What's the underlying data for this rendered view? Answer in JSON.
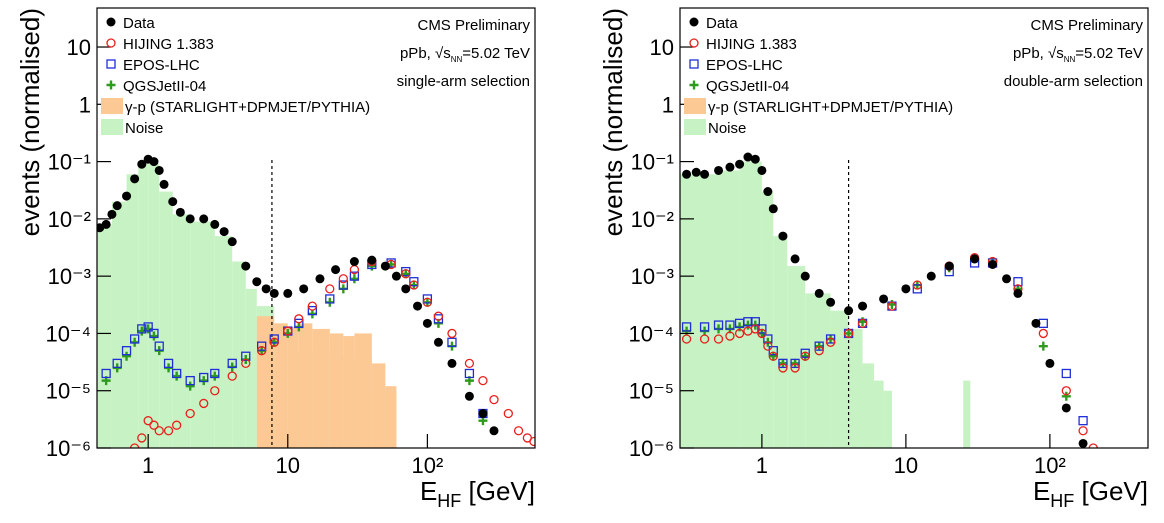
{
  "chart_data": [
    {
      "type": "scatter",
      "xlog": true,
      "ylog": true,
      "xlim": [
        0.43,
        590
      ],
      "ylim": [
        1e-06,
        48
      ],
      "xticks": [
        1,
        10,
        {
          "value": 100,
          "label": "10²"
        }
      ],
      "yticks": [
        {
          "value": 1e-06,
          "label": "10⁻⁶"
        },
        {
          "value": 1e-05,
          "label": "10⁻⁵"
        },
        {
          "value": 0.0001,
          "label": "10⁻⁴"
        },
        {
          "value": 0.001,
          "label": "10⁻³"
        },
        {
          "value": 0.01,
          "label": "10⁻²"
        },
        {
          "value": 0.1,
          "label": "10⁻¹"
        },
        1,
        10
      ],
      "y_label": "events (normalised)",
      "x_label": {
        "main": "E",
        "sub": "HF",
        "rest": " [GeV]"
      },
      "legend": "upper left",
      "annotations": {
        "experiment": "CMS Preliminary",
        "energy": {
          "prefix": "pPb, √s",
          "sub": "NN",
          "suffix": "=5.02 TeV"
        },
        "selection": "single-arm selection"
      },
      "threshold_x": 7.7,
      "series": [
        {
          "name": "Data",
          "color": "#000000",
          "marker": "filled-circle",
          "x": [
            0.45,
            0.5,
            0.55,
            0.6,
            0.7,
            0.8,
            0.9,
            1.0,
            1.1,
            1.2,
            1.3,
            1.5,
            1.7,
            2,
            2.5,
            3,
            3.5,
            4,
            5,
            6,
            7,
            8,
            10,
            13,
            17,
            22,
            30,
            40,
            50,
            60,
            70,
            85,
            100,
            120,
            150,
            200,
            250,
            300
          ],
          "values": [
            0.007,
            0.008,
            0.012,
            0.017,
            0.025,
            0.05,
            0.09,
            0.11,
            0.1,
            0.07,
            0.04,
            0.02,
            0.013,
            0.01,
            0.01,
            0.008,
            0.006,
            0.004,
            0.0015,
            0.0008,
            0.0006,
            0.0005,
            0.0005,
            0.0006,
            0.0009,
            0.0013,
            0.0018,
            0.0019,
            0.0015,
            0.001,
            0.0006,
            0.0003,
            0.00015,
            7e-05,
            3e-05,
            8e-06,
            4e-06,
            2e-06
          ]
        },
        {
          "name": "HIJING 1.383",
          "color": "#e8201c",
          "marker": "open-circle",
          "x": [
            0.8,
            0.9,
            1.0,
            1.1,
            1.2,
            1.4,
            1.6,
            2,
            2.5,
            3,
            4,
            5,
            6.5,
            8,
            10,
            12,
            15,
            20,
            25,
            30,
            40,
            55,
            70,
            80,
            100,
            120,
            150,
            200,
            250,
            300,
            380,
            450,
            520,
            580
          ],
          "values": [
            1e-06,
            1.5e-06,
            3e-06,
            2.5e-06,
            2e-06,
            2e-06,
            2.5e-06,
            4e-06,
            6e-06,
            1e-05,
            1.8e-05,
            3e-05,
            5e-05,
            7e-05,
            0.00011,
            0.00018,
            0.0003,
            0.0006,
            0.0009,
            0.0013,
            0.0018,
            0.0016,
            0.0011,
            0.0007,
            0.00035,
            0.0002,
            0.0001,
            3e-05,
            1.5e-05,
            7e-06,
            4e-06,
            2e-06,
            1.5e-06,
            1.3e-06
          ]
        },
        {
          "name": "EPOS-LHC",
          "color": "#1f2fd6",
          "marker": "open-square",
          "x": [
            0.5,
            0.6,
            0.7,
            0.8,
            0.9,
            1.0,
            1.1,
            1.2,
            1.4,
            1.6,
            2,
            2.5,
            3,
            4,
            5,
            6.5,
            8,
            10,
            12,
            15,
            20,
            25,
            30,
            40,
            55,
            70,
            80,
            100,
            120,
            150,
            200,
            250
          ],
          "values": [
            2e-05,
            3e-05,
            5e-05,
            8e-05,
            0.00012,
            0.00013,
            0.0001,
            6e-05,
            3e-05,
            2e-05,
            1.5e-05,
            1.7e-05,
            2e-05,
            3e-05,
            4e-05,
            6e-05,
            8e-05,
            0.00011,
            0.00015,
            0.00025,
            0.0004,
            0.0007,
            0.001,
            0.0016,
            0.0017,
            0.0012,
            0.0008,
            0.0004,
            0.00018,
            7e-05,
            2e-05,
            4e-06
          ]
        },
        {
          "name": "QGSJetII-04",
          "color": "#2e9a1e",
          "marker": "cross",
          "x": [
            0.5,
            0.6,
            0.7,
            0.8,
            0.9,
            1.0,
            1.1,
            1.2,
            1.4,
            1.6,
            2,
            2.5,
            3,
            4,
            5,
            6.5,
            8,
            10,
            12,
            15,
            20,
            25,
            30,
            40,
            55,
            70,
            80,
            100,
            120,
            150,
            200,
            250
          ],
          "values": [
            1.5e-05,
            2.5e-05,
            4e-05,
            7e-05,
            0.00011,
            0.00012,
            9e-05,
            5e-05,
            2.5e-05,
            1.8e-05,
            1.2e-05,
            1.5e-05,
            1.8e-05,
            2.6e-05,
            3.5e-05,
            5e-05,
            7e-05,
            0.0001,
            0.00013,
            0.00022,
            0.00035,
            0.0006,
            0.0009,
            0.0015,
            0.0016,
            0.0011,
            0.0007,
            0.00035,
            0.00015,
            6e-05,
            1.5e-05,
            3e-06
          ]
        }
      ],
      "histograms": [
        {
          "name": "γ-p (STARLIGHT+DPMJET/PYTHIA)",
          "color": "#fcc894",
          "bins": [
            6,
            8,
            10,
            12,
            15,
            20,
            25,
            30,
            40,
            50,
            60
          ],
          "counts": [
            0.0002,
            0.00015,
            0.00013,
            0.00015,
            0.00012,
            0.0001,
            9e-05,
            0.0001,
            3e-05,
            1.2e-05
          ]
        },
        {
          "name": "Noise",
          "color": "#c7f2c3",
          "bins": [
            0.43,
            0.55,
            0.7,
            0.85,
            1.0,
            1.2,
            1.5,
            2,
            3,
            4,
            5,
            6,
            8,
            10,
            20,
            40,
            60
          ],
          "counts": [
            0.008,
            0.02,
            0.06,
            0.1,
            0.09,
            0.03,
            0.012,
            0.009,
            0.005,
            0.0018,
            0.0006,
            0.0003,
            0.0001,
            5e-05,
            4e-05,
            1e-05
          ]
        }
      ]
    },
    {
      "type": "scatter",
      "xlog": true,
      "ylog": true,
      "xlim": [
        0.27,
        480
      ],
      "ylim": [
        1e-06,
        48
      ],
      "xticks": [
        1,
        10,
        {
          "value": 100,
          "label": "10²"
        }
      ],
      "yticks": [
        {
          "value": 1e-06,
          "label": "10⁻⁶"
        },
        {
          "value": 1e-05,
          "label": "10⁻⁵"
        },
        {
          "value": 0.0001,
          "label": "10⁻⁴"
        },
        {
          "value": 0.001,
          "label": "10⁻³"
        },
        {
          "value": 0.01,
          "label": "10⁻²"
        },
        {
          "value": 0.1,
          "label": "10⁻¹"
        },
        1,
        10
      ],
      "y_label": "events (normalised)",
      "x_label": {
        "main": "E",
        "sub": "HF",
        "rest": " [GeV]"
      },
      "legend": "upper left",
      "annotations": {
        "experiment": "CMS Preliminary",
        "energy": {
          "prefix": "pPb, √s",
          "sub": "NN",
          "suffix": "=5.02 TeV"
        },
        "selection": "double-arm selection"
      },
      "threshold_x": 4,
      "series": [
        {
          "name": "Data",
          "color": "#000000",
          "marker": "filled-circle",
          "x": [
            0.3,
            0.35,
            0.4,
            0.5,
            0.6,
            0.7,
            0.8,
            0.9,
            1.0,
            1.1,
            1.2,
            1.4,
            1.7,
            2,
            2.5,
            3,
            4,
            5,
            7,
            10,
            15,
            20,
            30,
            40,
            50,
            60,
            80,
            100,
            130,
            170
          ],
          "values": [
            0.06,
            0.065,
            0.06,
            0.07,
            0.08,
            0.09,
            0.12,
            0.11,
            0.07,
            0.03,
            0.015,
            0.005,
            0.002,
            0.001,
            0.0005,
            0.00035,
            0.00025,
            0.0003,
            0.0004,
            0.0006,
            0.001,
            0.0015,
            0.002,
            0.0016,
            0.0009,
            0.0005,
            0.00015,
            3e-05,
            5e-06,
            1.2e-06
          ]
        },
        {
          "name": "HIJING 1.383",
          "color": "#e8201c",
          "marker": "open-circle",
          "x": [
            0.3,
            0.4,
            0.5,
            0.6,
            0.7,
            0.8,
            0.9,
            1.0,
            1.1,
            1.2,
            1.4,
            1.7,
            2,
            2.5,
            3,
            4,
            5,
            8,
            12,
            20,
            30,
            40,
            60,
            90,
            130,
            170,
            200
          ],
          "values": [
            8e-05,
            8e-05,
            8e-05,
            9e-05,
            0.0001,
            0.00011,
            0.00012,
            0.0001,
            6e-05,
            4e-05,
            2.5e-05,
            2.5e-05,
            4e-05,
            5e-05,
            7e-05,
            0.0001,
            0.00015,
            0.0003,
            0.0007,
            0.0015,
            0.0021,
            0.0018,
            0.0006,
            0.0001,
            1e-05,
            2e-06,
            1e-06
          ]
        },
        {
          "name": "EPOS-LHC",
          "color": "#1f2fd6",
          "marker": "open-square",
          "x": [
            0.3,
            0.4,
            0.5,
            0.6,
            0.7,
            0.8,
            0.9,
            1.0,
            1.1,
            1.2,
            1.4,
            1.7,
            2,
            2.5,
            3,
            4,
            5,
            8,
            12,
            20,
            30,
            40,
            60,
            90,
            130,
            170
          ],
          "values": [
            0.00013,
            0.00013,
            0.00014,
            0.00014,
            0.00015,
            0.00016,
            0.00016,
            0.00012,
            8e-05,
            5e-05,
            3e-05,
            3e-05,
            4.5e-05,
            6e-05,
            8e-05,
            0.0001,
            0.00015,
            0.0003,
            0.0006,
            0.0012,
            0.0017,
            0.0017,
            0.0008,
            0.00015,
            2e-05,
            3e-06
          ]
        },
        {
          "name": "QGSJetII-04",
          "color": "#2e9a1e",
          "marker": "cross",
          "x": [
            0.3,
            0.4,
            0.5,
            0.6,
            0.7,
            0.8,
            0.9,
            1.0,
            1.1,
            1.2,
            1.4,
            1.7,
            2,
            2.5,
            3,
            4,
            5,
            8,
            12,
            20,
            30,
            40,
            60,
            90,
            130
          ],
          "values": [
            0.00011,
            0.00011,
            0.00012,
            0.00012,
            0.00013,
            0.00014,
            0.00014,
            0.0001,
            7e-05,
            4e-05,
            3e-05,
            3e-05,
            4e-05,
            6e-05,
            8e-05,
            0.0001,
            0.00016,
            0.00032,
            0.0007,
            0.0014,
            0.002,
            0.0018,
            0.0006,
            6e-05,
            8e-06
          ]
        }
      ],
      "histograms": [
        {
          "name": "γ-p (STARLIGHT+DPMJET/PYTHIA)",
          "color": "#fcc894",
          "bins": [
            4,
            5
          ],
          "counts": [
            null
          ]
        },
        {
          "name": "Noise",
          "color": "#c7f2c3",
          "bins": [
            0.27,
            0.5,
            0.7,
            1,
            1.2,
            1.5,
            2,
            3,
            4,
            5,
            6,
            7,
            8,
            25,
            28
          ],
          "counts": [
            0.06,
            0.07,
            0.1,
            0.03,
            0.005,
            0.0015,
            0.0005,
            0.00025,
            0.00012,
            3e-05,
            1.5e-05,
            1e-05,
            null,
            1.5e-05
          ]
        }
      ]
    }
  ]
}
